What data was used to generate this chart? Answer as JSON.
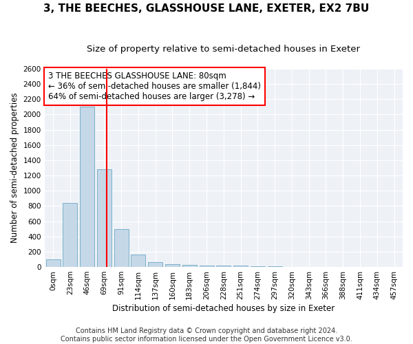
{
  "title": "3, THE BEECHES, GLASSHOUSE LANE, EXETER, EX2 7BU",
  "subtitle": "Size of property relative to semi-detached houses in Exeter",
  "xlabel": "Distribution of semi-detached houses by size in Exeter",
  "ylabel": "Number of semi-detached properties",
  "footer1": "Contains HM Land Registry data © Crown copyright and database right 2024.",
  "footer2": "Contains public sector information licensed under the Open Government Licence v3.0.",
  "bar_labels": [
    "0sqm",
    "23sqm",
    "46sqm",
    "69sqm",
    "91sqm",
    "114sqm",
    "137sqm",
    "160sqm",
    "183sqm",
    "206sqm",
    "228sqm",
    "251sqm",
    "274sqm",
    "297sqm",
    "320sqm",
    "343sqm",
    "366sqm",
    "388sqm",
    "411sqm",
    "434sqm",
    "457sqm"
  ],
  "bar_values": [
    100,
    840,
    2100,
    1280,
    500,
    160,
    65,
    35,
    25,
    22,
    20,
    15,
    10,
    8,
    5,
    3,
    2,
    1,
    1,
    0,
    0
  ],
  "bar_color": "#c5d8e8",
  "bar_edge_color": "#7aafc8",
  "vline_bin_index": 3,
  "annotation_line1": "3 THE BEECHES GLASSHOUSE LANE: 80sqm",
  "annotation_line2": "← 36% of semi-detached houses are smaller (1,844)",
  "annotation_line3": "64% of semi-detached houses are larger (3,278) →",
  "annotation_box_color": "white",
  "annotation_box_edge": "red",
  "vline_color": "red",
  "ylim": [
    0,
    2600
  ],
  "yticks": [
    0,
    200,
    400,
    600,
    800,
    1000,
    1200,
    1400,
    1600,
    1800,
    2000,
    2200,
    2400,
    2600
  ],
  "bg_color": "#eef2f7",
  "grid_color": "white",
  "title_fontsize": 11,
  "subtitle_fontsize": 9.5,
  "axis_label_fontsize": 8.5,
  "tick_fontsize": 7.5,
  "annotation_fontsize": 8.5,
  "footer_fontsize": 7
}
